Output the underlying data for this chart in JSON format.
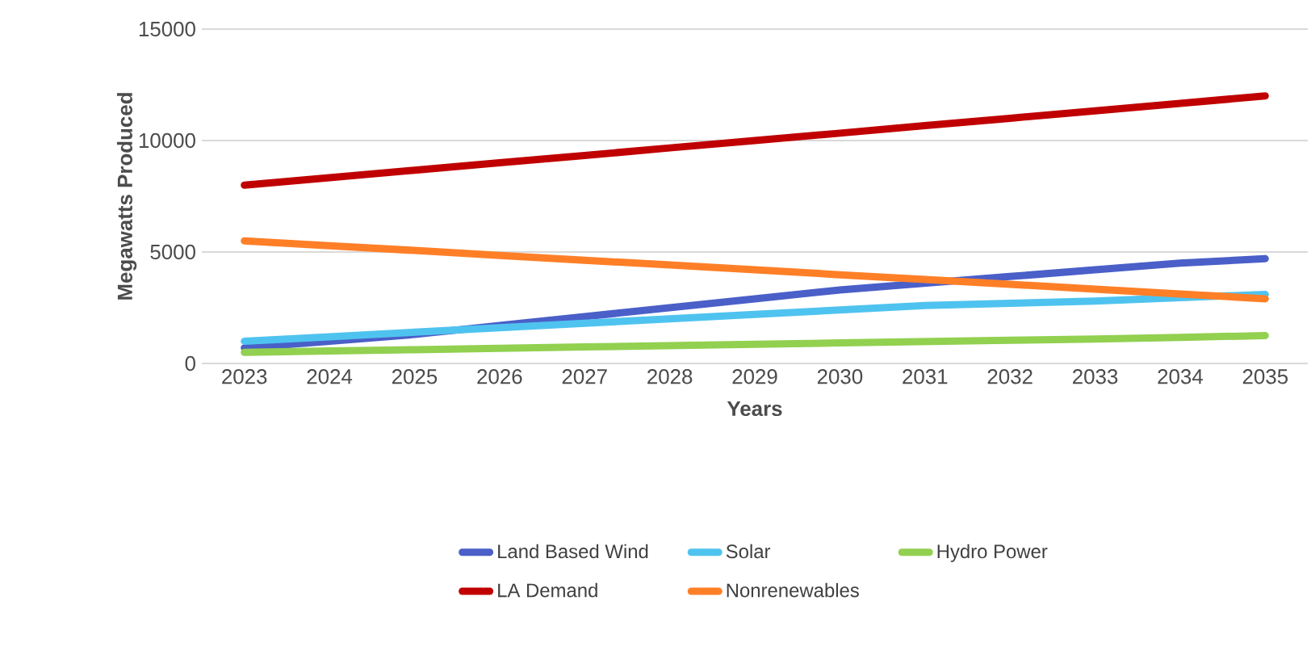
{
  "chart_data": {
    "type": "line",
    "xlabel": "Years",
    "ylabel": "Megawatts Produced",
    "categories": [
      "2023",
      "2024",
      "2025",
      "2026",
      "2027",
      "2028",
      "2029",
      "2030",
      "2031",
      "2032",
      "2033",
      "2034",
      "2035"
    ],
    "series": [
      {
        "name": "Land Based Wind",
        "color": "#4a5fc8",
        "values": [
          700,
          1000,
          1300,
          1700,
          2100,
          2500,
          2900,
          3300,
          3600,
          3900,
          4200,
          4500,
          4700
        ]
      },
      {
        "name": "Solar",
        "color": "#4fc3ef",
        "values": [
          1000,
          1200,
          1400,
          1600,
          1800,
          2000,
          2200,
          2400,
          2600,
          2700,
          2800,
          2950,
          3100
        ]
      },
      {
        "name": "Hydro Power",
        "color": "#92d050",
        "values": [
          500,
          560,
          620,
          680,
          740,
          800,
          860,
          920,
          980,
          1040,
          1100,
          1170,
          1250
        ]
      },
      {
        "name": "LA Demand",
        "color": "#c00000",
        "values": [
          8000,
          8330,
          8670,
          9000,
          9330,
          9670,
          10000,
          10330,
          10670,
          11000,
          11330,
          11670,
          12000
        ]
      },
      {
        "name": "Nonrenewables",
        "color": "#ff7f27",
        "values": [
          5500,
          5280,
          5070,
          4850,
          4630,
          4420,
          4200,
          3980,
          3770,
          3550,
          3330,
          3120,
          2900
        ]
      }
    ],
    "ylim": [
      0,
      15000
    ],
    "yticks": [
      0,
      5000,
      10000,
      15000
    ],
    "grid": "y",
    "legend": "bottom",
    "marker": "none",
    "line_style": "solid"
  }
}
